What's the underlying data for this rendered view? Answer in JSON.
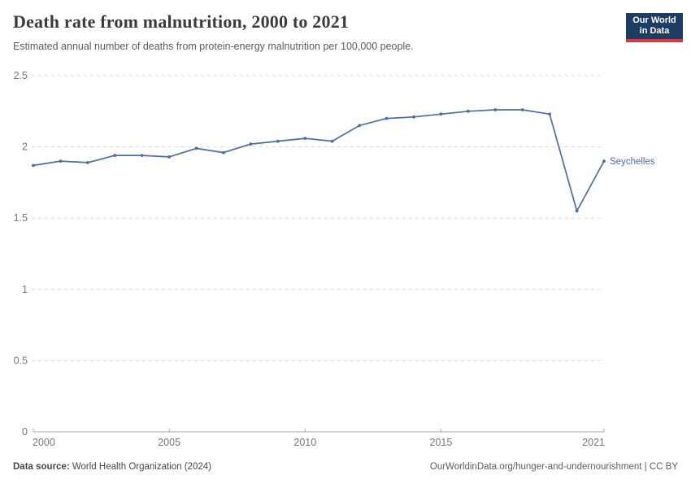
{
  "header": {
    "title": "Death rate from malnutrition, 2000 to 2021",
    "subtitle": "Estimated annual number of deaths from protein-energy malnutrition per 100,000 people.",
    "logo": {
      "line1": "Our World",
      "line2": "in Data",
      "bg_color": "#1d3d63",
      "accent_color": "#d73a3a"
    }
  },
  "chart_data": {
    "type": "line",
    "x": [
      2000,
      2001,
      2002,
      2003,
      2004,
      2005,
      2006,
      2007,
      2008,
      2009,
      2010,
      2011,
      2012,
      2013,
      2014,
      2015,
      2016,
      2017,
      2018,
      2019,
      2020,
      2021
    ],
    "series": [
      {
        "name": "Seychelles",
        "color": "#4C6BA8",
        "values": [
          1.87,
          1.9,
          1.89,
          1.94,
          1.94,
          1.93,
          1.99,
          1.96,
          2.02,
          2.04,
          2.06,
          2.04,
          2.15,
          2.2,
          2.21,
          2.23,
          2.25,
          2.26,
          2.26,
          2.23,
          1.55,
          1.9
        ]
      }
    ],
    "title": "Death rate from malnutrition, 2000 to 2021",
    "xlabel": "",
    "ylabel": "",
    "ylim": [
      0,
      2.5
    ],
    "yticks": [
      0,
      0.5,
      1,
      1.5,
      2,
      2.5
    ],
    "xticks": [
      2000,
      2005,
      2010,
      2015,
      2021
    ],
    "grid": "horizontal-dashed",
    "legend_position": "end-of-line-label",
    "grid_color": "#dcdcdc",
    "axis_color": "#a8a8a8",
    "tick_label_color": "#767676"
  },
  "footer": {
    "datasource_label": "Data source:",
    "datasource_value": " World Health Organization (2024)",
    "right_text": "OurWorldinData.org/hunger-and-undernourishment | CC BY"
  }
}
